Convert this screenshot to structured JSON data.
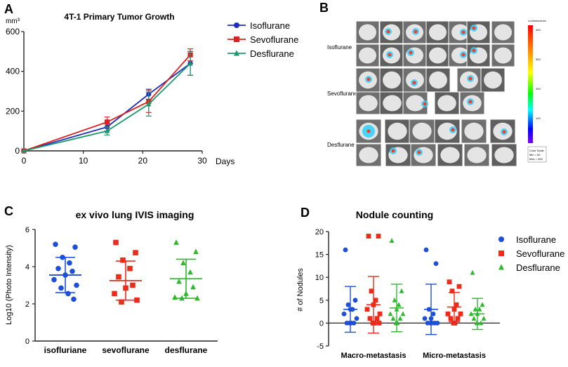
{
  "panels": {
    "a": "A",
    "b": "B",
    "c": "C",
    "d": "D"
  },
  "imaging": {
    "rows": [
      "Isoflurane",
      "Sevoflurane",
      "Desflurane"
    ],
    "scale_title": "Luminescence",
    "scale_ticks": [
      "400",
      "300",
      "200",
      "100"
    ],
    "scale_colors": [
      "#ff0000",
      "#ff8000",
      "#ffff00",
      "#00ff00",
      "#00ffff",
      "#0000ff",
      "#8000ff"
    ],
    "legend_box": [
      "Color Scale",
      "Min = 50",
      "Max = 450"
    ]
  },
  "chart_data": [
    {
      "id": "A",
      "type": "line",
      "title": "4T-1 Primary Tumor Growth",
      "ylabel": "mm³",
      "xlabel": "Days",
      "x": [
        0,
        14,
        21,
        28
      ],
      "xticks": [
        "0",
        "10",
        "20",
        "30"
      ],
      "xtick_values": [
        0,
        10,
        20,
        30
      ],
      "yticks": [
        "0",
        "200",
        "400",
        "600"
      ],
      "ytick_values": [
        0,
        200,
        400,
        600
      ],
      "xlim": [
        0,
        30
      ],
      "ylim": [
        0,
        600
      ],
      "series": [
        {
          "name": "Isoflurane",
          "color": "#1f2fbf",
          "marker": "circle",
          "values": [
            0,
            120,
            285,
            440
          ],
          "errors": [
            0,
            20,
            25,
            60
          ]
        },
        {
          "name": "Sevoflurane",
          "color": "#e02020",
          "marker": "square",
          "values": [
            0,
            145,
            248,
            483
          ],
          "errors": [
            0,
            25,
            55,
            30
          ]
        },
        {
          "name": "Desflurane",
          "color": "#1a9a6c",
          "marker": "triangle",
          "values": [
            0,
            100,
            235,
            440
          ],
          "errors": [
            0,
            20,
            60,
            60
          ]
        }
      ]
    },
    {
      "id": "C",
      "type": "scatter",
      "title": "ex vivo lung IVIS imaging",
      "ylabel": "Log10 (Photo Intensity)",
      "categories": [
        "isofluriane",
        "sevoflurane",
        "desflurane"
      ],
      "yticks": [
        "0",
        "2",
        "4",
        "6"
      ],
      "ytick_values": [
        0,
        2,
        4,
        6
      ],
      "ylim": [
        0,
        6
      ],
      "groups": [
        {
          "color": "#1e4fd8",
          "marker": "circle",
          "mean": 3.55,
          "sd": 0.95,
          "values": [
            5.2,
            5.05,
            4.5,
            4.2,
            3.9,
            3.75,
            3.55,
            3.3,
            3.0,
            2.85,
            2.55,
            2.25
          ]
        },
        {
          "color": "#ee2b1a",
          "marker": "square",
          "mean": 3.25,
          "sd": 1.05,
          "values": [
            5.3,
            4.75,
            4.35,
            3.9,
            3.45,
            3.0,
            2.85,
            2.55,
            2.2,
            2.1
          ]
        },
        {
          "color": "#2db82d",
          "marker": "triangle",
          "mean": 3.35,
          "sd": 1.05,
          "values": [
            5.3,
            4.8,
            4.2,
            3.7,
            3.2,
            2.9,
            2.55,
            2.35,
            2.3,
            2.3
          ]
        }
      ]
    },
    {
      "id": "D",
      "type": "scatter",
      "title": "Nodule counting",
      "ylabel": "# of Nodules",
      "categories": [
        "Macro-metastasis",
        "Micro-metastasis"
      ],
      "yticks": [
        "-5",
        "0",
        "5",
        "10",
        "15",
        "20"
      ],
      "ytick_values": [
        -5,
        0,
        5,
        10,
        15,
        20
      ],
      "ylim": [
        -5,
        20
      ],
      "series": [
        {
          "name": "Isoflurane",
          "color": "#1e4fd8",
          "marker": "circle",
          "groups": [
            {
              "mean": 3.0,
              "sd": 5.0,
              "values": [
                16,
                5,
                4,
                3,
                3,
                2,
                1,
                0,
                0,
                0,
                0
              ]
            },
            {
              "mean": 3.0,
              "sd": 5.5,
              "values": [
                16,
                13,
                3,
                2,
                1,
                1,
                0,
                0,
                0,
                0,
                0
              ]
            }
          ]
        },
        {
          "name": "Sevoflurane",
          "color": "#ee2b1a",
          "marker": "square",
          "groups": [
            {
              "mean": 4.0,
              "sd": 6.2,
              "values": [
                19,
                19,
                7,
                5,
                4,
                3,
                2,
                1,
                1,
                0,
                0,
                0
              ]
            },
            {
              "mean": 3.5,
              "sd": 3.2,
              "values": [
                9,
                8,
                7,
                4,
                3,
                2,
                2,
                1,
                1,
                0,
                0
              ]
            }
          ]
        },
        {
          "name": "Desflurane",
          "color": "#2db82d",
          "marker": "triangle",
          "groups": [
            {
              "mean": 3.3,
              "sd": 5.2,
              "values": [
                18,
                7,
                5,
                4,
                3,
                2,
                2,
                1,
                1,
                0,
                0
              ]
            },
            {
              "mean": 2.0,
              "sd": 3.4,
              "values": [
                11,
                4,
                3,
                3,
                2,
                2,
                1,
                1,
                0,
                0
              ]
            }
          ]
        }
      ]
    }
  ]
}
